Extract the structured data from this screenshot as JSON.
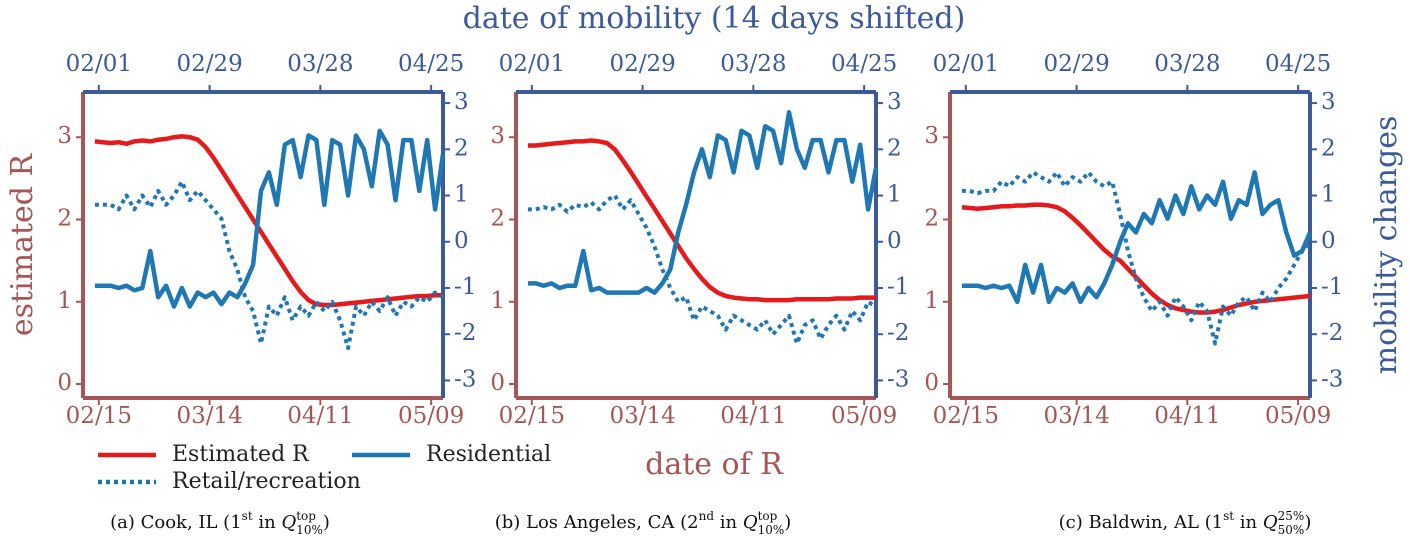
{
  "chart_data": [
    {
      "type": "line",
      "y_color": "#a65656",
      "y2_color": "#3c5a9a",
      "ylabel": "estimated R",
      "legend": "below",
      "caption": [
        {
          "text": "(a) Cook, IL (1"
        },
        {
          "text": "st",
          "pos": "sup"
        },
        {
          "text": " in "
        },
        {
          "text": "Q"
        },
        {
          "text": "top",
          "pos": "sup"
        },
        {
          "text": "10%",
          "pos": "sub"
        },
        {
          "text": ")"
        }
      ],
      "x": [
        "02/14",
        "02/16",
        "02/18",
        "02/20",
        "02/22",
        "02/24",
        "02/26",
        "02/28",
        "03/01",
        "03/03",
        "03/05",
        "03/07",
        "03/09",
        "03/11",
        "03/13",
        "03/15",
        "03/17",
        "03/19",
        "03/21",
        "03/23",
        "03/25",
        "03/27",
        "03/29",
        "03/31",
        "04/02",
        "04/04",
        "04/06",
        "04/08",
        "04/10",
        "04/12",
        "04/14",
        "04/16",
        "04/18",
        "04/20",
        "04/22",
        "04/24",
        "04/26",
        "04/28",
        "04/30",
        "05/02",
        "05/04",
        "05/06",
        "05/08",
        "05/10",
        "05/12"
      ],
      "xlim": [
        "02/11",
        "05/12"
      ],
      "xticks": [
        "02/15",
        "03/14",
        "04/11",
        "05/09"
      ],
      "x2lim": [
        "01/28",
        "04/28"
      ],
      "x2ticks": [
        "02/01",
        "02/29",
        "03/28",
        "04/25"
      ],
      "ylim": [
        -0.17,
        3.55
      ],
      "yticks": [
        0,
        1,
        2,
        3
      ],
      "y2lim": [
        -3.38,
        3.24
      ],
      "y2ticks": [
        -3,
        -2,
        -1,
        0,
        1,
        2,
        3
      ],
      "series": [
        {
          "name": "Estimated R",
          "color": "#e41a1c",
          "style": "solid",
          "values": [
            2.95,
            2.94,
            2.93,
            2.94,
            2.92,
            2.95,
            2.96,
            2.95,
            2.97,
            2.98,
            3.0,
            3.01,
            3.0,
            2.97,
            2.88,
            2.75,
            2.6,
            2.45,
            2.3,
            2.15,
            2.0,
            1.85,
            1.7,
            1.55,
            1.4,
            1.25,
            1.12,
            1.02,
            0.97,
            0.96,
            0.96,
            0.97,
            0.98,
            0.99,
            1.0,
            1.01,
            1.02,
            1.03,
            1.04,
            1.05,
            1.06,
            1.07,
            1.07,
            1.08,
            1.08
          ]
        },
        {
          "name": "Residential",
          "color": "#1f77b4",
          "style": "solid",
          "axis": "y2",
          "values": [
            -0.95,
            -0.95,
            -0.95,
            -1.0,
            -0.95,
            -1.05,
            -1.0,
            -0.2,
            -1.2,
            -0.95,
            -1.4,
            -1.0,
            -1.4,
            -1.1,
            -1.2,
            -1.1,
            -1.35,
            -1.1,
            -1.2,
            -0.9,
            -0.5,
            1.1,
            1.5,
            0.8,
            2.1,
            2.2,
            1.4,
            2.3,
            2.2,
            0.8,
            2.2,
            2.1,
            1.0,
            2.3,
            2.0,
            1.2,
            2.4,
            2.1,
            0.9,
            2.2,
            2.2,
            1.1,
            2.2,
            0.7,
            1.9
          ]
        },
        {
          "name": "Retail/recreation",
          "color": "#1f77b4",
          "style": "dotted",
          "axis": "y2",
          "values": [
            0.8,
            0.8,
            0.8,
            0.7,
            1.0,
            0.7,
            1.0,
            0.75,
            1.1,
            0.8,
            1.0,
            1.3,
            0.9,
            1.1,
            0.9,
            0.7,
            0.5,
            -0.2,
            -0.6,
            -1.2,
            -1.5,
            -2.2,
            -1.4,
            -1.6,
            -1.2,
            -1.7,
            -1.4,
            -1.6,
            -1.3,
            -1.5,
            -1.3,
            -1.7,
            -2.3,
            -1.4,
            -1.6,
            -1.3,
            -1.5,
            -1.2,
            -1.6,
            -1.3,
            -1.4,
            -1.2,
            -1.3,
            -1.1,
            -1.2
          ]
        }
      ]
    },
    {
      "type": "line",
      "y_color": "#a65656",
      "y2_color": "#3c5a9a",
      "xlabel": "date of R",
      "x2label": "date of mobility (14 days shifted)",
      "caption": [
        {
          "text": "(b) Los Angeles, CA (2"
        },
        {
          "text": "nd",
          "pos": "sup"
        },
        {
          "text": " in "
        },
        {
          "text": "Q"
        },
        {
          "text": "top",
          "pos": "sup"
        },
        {
          "text": "10%",
          "pos": "sub"
        },
        {
          "text": ")"
        }
      ],
      "x": [
        "02/14",
        "02/16",
        "02/18",
        "02/20",
        "02/22",
        "02/24",
        "02/26",
        "02/28",
        "03/01",
        "03/03",
        "03/05",
        "03/07",
        "03/09",
        "03/11",
        "03/13",
        "03/15",
        "03/17",
        "03/19",
        "03/21",
        "03/23",
        "03/25",
        "03/27",
        "03/29",
        "03/31",
        "04/02",
        "04/04",
        "04/06",
        "04/08",
        "04/10",
        "04/12",
        "04/14",
        "04/16",
        "04/18",
        "04/20",
        "04/22",
        "04/24",
        "04/26",
        "04/28",
        "04/30",
        "05/02",
        "05/04",
        "05/06",
        "05/08",
        "05/10",
        "05/12"
      ],
      "xlim": [
        "02/11",
        "05/12"
      ],
      "xticks": [
        "02/15",
        "03/14",
        "04/11",
        "05/09"
      ],
      "x2lim": [
        "01/28",
        "04/28"
      ],
      "x2ticks": [
        "02/01",
        "02/29",
        "03/28",
        "04/25"
      ],
      "ylim": [
        -0.17,
        3.55
      ],
      "yticks": [
        0,
        1,
        2,
        3
      ],
      "y2lim": [
        -3.38,
        3.24
      ],
      "y2ticks": [
        -3,
        -2,
        -1,
        0,
        1,
        2,
        3
      ],
      "series": [
        {
          "color": "#e41a1c",
          "style": "solid",
          "values": [
            2.9,
            2.9,
            2.91,
            2.92,
            2.93,
            2.94,
            2.95,
            2.95,
            2.96,
            2.95,
            2.93,
            2.85,
            2.72,
            2.58,
            2.43,
            2.28,
            2.13,
            1.98,
            1.83,
            1.68,
            1.53,
            1.4,
            1.28,
            1.18,
            1.11,
            1.07,
            1.05,
            1.04,
            1.03,
            1.03,
            1.02,
            1.02,
            1.02,
            1.02,
            1.03,
            1.03,
            1.03,
            1.03,
            1.03,
            1.04,
            1.04,
            1.04,
            1.05,
            1.05,
            1.05
          ]
        },
        {
          "color": "#1f77b4",
          "style": "solid",
          "axis": "y2",
          "values": [
            -0.9,
            -0.9,
            -0.95,
            -0.9,
            -1.0,
            -0.95,
            -0.95,
            -0.2,
            -1.05,
            -1.0,
            -1.1,
            -1.1,
            -1.1,
            -1.1,
            -1.1,
            -1.0,
            -1.1,
            -0.9,
            -0.6,
            0.2,
            0.8,
            1.5,
            2.0,
            1.4,
            2.3,
            2.2,
            1.5,
            2.4,
            2.3,
            1.6,
            2.5,
            2.4,
            1.7,
            2.8,
            2.0,
            1.6,
            2.2,
            2.2,
            1.5,
            2.2,
            2.2,
            1.3,
            2.1,
            0.7,
            1.6
          ]
        },
        {
          "color": "#1f77b4",
          "style": "dotted",
          "axis": "y2",
          "values": [
            0.7,
            0.7,
            0.75,
            0.7,
            0.8,
            0.65,
            0.8,
            0.75,
            0.85,
            0.7,
            0.9,
            1.0,
            0.7,
            0.9,
            0.6,
            0.3,
            -0.1,
            -0.6,
            -1.0,
            -1.3,
            -1.2,
            -1.7,
            -1.4,
            -1.5,
            -1.6,
            -1.9,
            -1.6,
            -1.7,
            -1.8,
            -1.9,
            -1.7,
            -2.0,
            -1.8,
            -1.6,
            -2.2,
            -1.8,
            -1.7,
            -2.1,
            -1.8,
            -1.6,
            -1.9,
            -1.5,
            -1.7,
            -1.3,
            -1.4
          ]
        }
      ]
    },
    {
      "type": "line",
      "y_color": "#a65656",
      "y2_color": "#3c5a9a",
      "y2label": "mobility changes",
      "caption": [
        {
          "text": "(c) Baldwin, AL (1"
        },
        {
          "text": "st",
          "pos": "sup"
        },
        {
          "text": " in "
        },
        {
          "text": "Q"
        },
        {
          "text": "25%",
          "pos": "sup"
        },
        {
          "text": "50%",
          "pos": "sub"
        },
        {
          "text": ")"
        }
      ],
      "x": [
        "02/14",
        "02/16",
        "02/18",
        "02/20",
        "02/22",
        "02/24",
        "02/26",
        "02/28",
        "03/01",
        "03/03",
        "03/05",
        "03/07",
        "03/09",
        "03/11",
        "03/13",
        "03/15",
        "03/17",
        "03/19",
        "03/21",
        "03/23",
        "03/25",
        "03/27",
        "03/29",
        "03/31",
        "04/02",
        "04/04",
        "04/06",
        "04/08",
        "04/10",
        "04/12",
        "04/14",
        "04/16",
        "04/18",
        "04/20",
        "04/22",
        "04/24",
        "04/26",
        "04/28",
        "04/30",
        "05/02",
        "05/04",
        "05/06",
        "05/08",
        "05/10",
        "05/12"
      ],
      "xlim": [
        "02/11",
        "05/12"
      ],
      "xticks": [
        "02/15",
        "03/14",
        "04/11",
        "05/09"
      ],
      "x2lim": [
        "01/28",
        "04/28"
      ],
      "x2ticks": [
        "02/01",
        "02/29",
        "03/28",
        "04/25"
      ],
      "ylim": [
        -0.17,
        3.55
      ],
      "yticks": [
        0,
        1,
        2,
        3
      ],
      "y2lim": [
        -3.38,
        3.24
      ],
      "y2ticks": [
        -3,
        -2,
        -1,
        0,
        1,
        2,
        3
      ],
      "series": [
        {
          "color": "#e41a1c",
          "style": "solid",
          "values": [
            2.15,
            2.14,
            2.13,
            2.14,
            2.15,
            2.16,
            2.16,
            2.17,
            2.17,
            2.18,
            2.18,
            2.17,
            2.15,
            2.1,
            2.02,
            1.93,
            1.83,
            1.73,
            1.63,
            1.55,
            1.5,
            1.4,
            1.3,
            1.2,
            1.1,
            1.02,
            0.96,
            0.92,
            0.9,
            0.88,
            0.87,
            0.87,
            0.88,
            0.9,
            0.93,
            0.96,
            0.98,
            1.0,
            1.01,
            1.02,
            1.03,
            1.04,
            1.05,
            1.06,
            1.07
          ]
        },
        {
          "color": "#1f77b4",
          "style": "solid",
          "axis": "y2",
          "values": [
            -0.95,
            -0.95,
            -0.95,
            -1.0,
            -0.95,
            -1.0,
            -0.95,
            -1.3,
            -0.5,
            -1.1,
            -0.5,
            -1.3,
            -1.0,
            -1.1,
            -0.9,
            -1.3,
            -1.0,
            -1.2,
            -0.9,
            -0.5,
            0.0,
            0.4,
            0.2,
            0.6,
            0.4,
            0.9,
            0.5,
            1.0,
            0.6,
            1.2,
            0.7,
            1.0,
            0.8,
            1.3,
            0.5,
            0.9,
            0.8,
            1.5,
            0.6,
            0.8,
            0.9,
            0.2,
            -0.3,
            -0.2,
            0.2
          ]
        },
        {
          "color": "#1f77b4",
          "style": "dotted",
          "axis": "y2",
          "values": [
            1.1,
            1.1,
            1.05,
            1.1,
            1.1,
            1.3,
            1.2,
            1.4,
            1.3,
            1.5,
            1.4,
            1.3,
            1.5,
            1.2,
            1.4,
            1.3,
            1.5,
            1.3,
            1.2,
            1.3,
            0.6,
            -0.2,
            -0.8,
            -1.2,
            -1.5,
            -1.3,
            -1.6,
            -1.2,
            -1.4,
            -1.7,
            -1.3,
            -1.5,
            -2.2,
            -1.4,
            -1.6,
            -1.3,
            -1.2,
            -1.5,
            -1.1,
            -1.3,
            -1.0,
            -0.8,
            -0.5,
            -0.2,
            0.0
          ]
        }
      ]
    }
  ]
}
